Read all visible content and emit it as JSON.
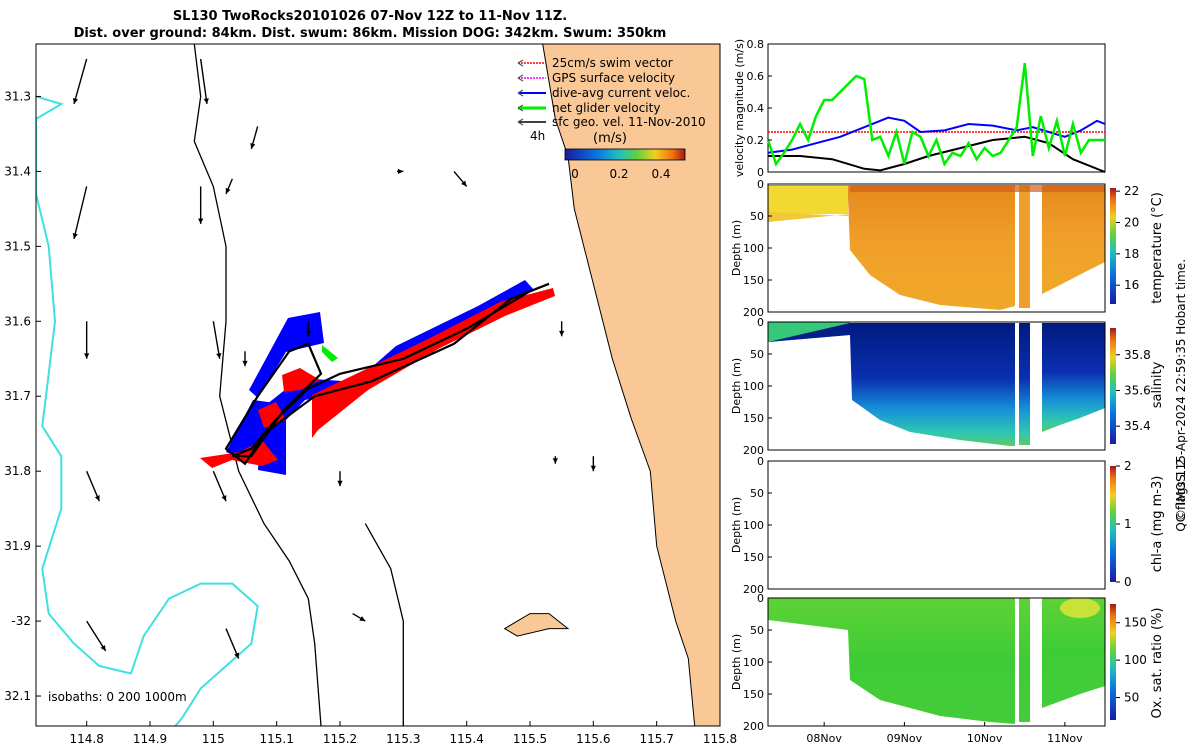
{
  "title_line1": "SL130 TwoRocks20101026 07-Nov 12Z to 11-Nov 11Z.",
  "title_line2": "Dist. over ground: 84km. Dist. swum: 86km. Mission DOG: 342km. Swum: 350km",
  "colors": {
    "land": "#f9c896",
    "isobath_0": "#000000",
    "isobath_200": "#000000",
    "isobath_1000": "#3fe0e0",
    "swim": "#ff0000",
    "gps": "#ff00ff",
    "current": "#0000ff",
    "net": "#00ee00",
    "geo": "#000000"
  },
  "chart_data": [
    {
      "type": "map",
      "title": "Glider track and velocity vectors",
      "xlim": [
        114.72,
        115.8
      ],
      "ylim": [
        -32.14,
        -31.23
      ],
      "xticks": [
        114.8,
        114.9,
        115,
        115.1,
        115.2,
        115.3,
        115.4,
        115.5,
        115.6,
        115.7,
        115.8
      ],
      "xtick_labels": [
        "114.8",
        "114.9",
        "115",
        "115.1",
        "115.2",
        "115.3",
        "115.4",
        "115.5",
        "115.6",
        "115.7",
        "115.8"
      ],
      "yticks": [
        -31.3,
        -31.4,
        -31.5,
        -31.6,
        -31.7,
        -31.8,
        -31.9,
        -32.0,
        -32.1
      ],
      "ytick_labels": [
        "31.3",
        "31.4",
        "31.5",
        "31.6",
        "31.7",
        "31.8",
        "31.9",
        "-32",
        "32.1"
      ],
      "legend": {
        "placement": "top-right",
        "entries": [
          "25cm/s swim vector",
          "GPS surface velocity",
          "dive-avg current veloc.",
          "net glider velocity",
          "sfc geo. vel. 11-Nov-2010"
        ],
        "time_label": "4h",
        "colorbar_unit": "(m/s)",
        "colorbar_ticks": [
          "0",
          "0.2",
          "0.4"
        ],
        "colorbar_range": [
          0,
          0.5
        ]
      },
      "isobaths_label": "isobaths: 0   200  1000m",
      "track": [
        [
          115.03,
          -31.78
        ],
        [
          115.06,
          -31.77
        ],
        [
          115.1,
          -31.73
        ],
        [
          115.15,
          -31.69
        ],
        [
          115.2,
          -31.67
        ],
        [
          115.3,
          -31.65
        ],
        [
          115.4,
          -31.61
        ],
        [
          115.5,
          -31.56
        ],
        [
          115.53,
          -31.55
        ],
        [
          115.47,
          -31.57
        ],
        [
          115.38,
          -31.63
        ],
        [
          115.25,
          -31.68
        ],
        [
          115.16,
          -31.7
        ],
        [
          115.08,
          -31.75
        ],
        [
          115.05,
          -31.79
        ],
        [
          115.02,
          -31.77
        ],
        [
          115.07,
          -31.7
        ],
        [
          115.12,
          -31.64
        ],
        [
          115.15,
          -31.63
        ],
        [
          115.17,
          -31.67
        ],
        [
          115.11,
          -31.72
        ],
        [
          115.06,
          -31.78
        ],
        [
          115.03,
          -31.78
        ]
      ],
      "coast": [
        [
          115.52,
          -31.23
        ],
        [
          115.54,
          -31.33
        ],
        [
          115.56,
          -31.38
        ],
        [
          115.57,
          -31.45
        ],
        [
          115.6,
          -31.55
        ],
        [
          115.63,
          -31.65
        ],
        [
          115.66,
          -31.73
        ],
        [
          115.69,
          -31.8
        ],
        [
          115.7,
          -31.9
        ],
        [
          115.73,
          -32.0
        ],
        [
          115.75,
          -32.05
        ],
        [
          115.76,
          -32.14
        ]
      ],
      "island": [
        [
          115.46,
          -32.01
        ],
        [
          115.5,
          -31.99
        ],
        [
          115.53,
          -31.99
        ],
        [
          115.56,
          -32.01
        ],
        [
          115.53,
          -32.01
        ],
        [
          115.48,
          -32.02
        ],
        [
          115.46,
          -32.01
        ]
      ],
      "isobath_200_line": [
        [
          114.97,
          -31.23
        ],
        [
          114.98,
          -31.3
        ],
        [
          114.97,
          -31.36
        ],
        [
          115.0,
          -31.42
        ],
        [
          115.02,
          -31.5
        ],
        [
          115.02,
          -31.6
        ],
        [
          115.01,
          -31.7
        ],
        [
          115.04,
          -31.8
        ],
        [
          115.08,
          -31.87
        ],
        [
          115.12,
          -31.92
        ],
        [
          115.15,
          -31.97
        ],
        [
          115.16,
          -32.03
        ],
        [
          115.17,
          -32.14
        ]
      ],
      "isobath_0_line": [
        [
          115.24,
          -31.87
        ],
        [
          115.28,
          -31.93
        ],
        [
          115.3,
          -32.0
        ],
        [
          115.3,
          -32.05
        ],
        [
          115.3,
          -32.14
        ]
      ],
      "isobath_1000_line": [
        [
          114.72,
          -31.3
        ],
        [
          114.76,
          -31.31
        ],
        [
          114.72,
          -31.33
        ],
        [
          114.72,
          -31.43
        ],
        [
          114.74,
          -31.5
        ],
        [
          114.75,
          -31.6
        ],
        [
          114.74,
          -31.67
        ],
        [
          114.73,
          -31.74
        ],
        [
          114.76,
          -31.78
        ],
        [
          114.76,
          -31.85
        ],
        [
          114.73,
          -31.93
        ],
        [
          114.74,
          -31.99
        ],
        [
          114.78,
          -32.03
        ],
        [
          114.82,
          -32.06
        ],
        [
          114.87,
          -32.07
        ],
        [
          114.89,
          -32.02
        ],
        [
          114.93,
          -31.97
        ],
        [
          114.98,
          -31.95
        ],
        [
          115.03,
          -31.95
        ],
        [
          115.07,
          -31.98
        ],
        [
          115.06,
          -32.03
        ],
        [
          115.02,
          -32.06
        ],
        [
          114.98,
          -32.09
        ],
        [
          114.95,
          -32.13
        ],
        [
          114.94,
          -32.14
        ]
      ],
      "geo_vectors": [
        [
          114.8,
          -31.25,
          -0.02,
          -0.06
        ],
        [
          114.8,
          -31.42,
          -0.02,
          -0.07
        ],
        [
          114.8,
          -31.6,
          0.0,
          -0.05
        ],
        [
          114.8,
          -31.8,
          0.02,
          -0.04
        ],
        [
          114.8,
          -32.0,
          0.03,
          -0.04
        ],
        [
          114.98,
          -31.25,
          0.01,
          -0.06
        ],
        [
          114.98,
          -31.42,
          0.0,
          -0.05
        ],
        [
          115.0,
          -31.6,
          0.01,
          -0.05
        ],
        [
          115.0,
          -31.8,
          0.02,
          -0.04
        ],
        [
          115.02,
          -32.01,
          0.02,
          -0.04
        ],
        [
          115.07,
          -31.34,
          -0.01,
          -0.03
        ],
        [
          115.03,
          -31.41,
          -0.01,
          -0.02
        ],
        [
          115.05,
          -31.64,
          0.0,
          -0.02
        ],
        [
          115.15,
          -31.6,
          0.0,
          -0.02
        ],
        [
          115.2,
          -31.8,
          0.0,
          -0.02
        ],
        [
          115.22,
          -31.99,
          0.02,
          -0.01
        ],
        [
          115.29,
          -31.4,
          0.01,
          0.0
        ],
        [
          115.38,
          -31.4,
          0.02,
          -0.02
        ],
        [
          115.55,
          -31.6,
          0.0,
          -0.02
        ],
        [
          115.6,
          -31.78,
          0.0,
          -0.02
        ],
        [
          115.54,
          -31.78,
          0.0,
          -0.01
        ]
      ],
      "track_cities": []
    },
    {
      "type": "line",
      "xlabel": "",
      "ylabel": "velocity magnitude (m/s)",
      "xlim": [
        7.3,
        11.5
      ],
      "ylim": [
        0,
        0.8
      ],
      "yticks": [
        0,
        0.2,
        0.4,
        0.6,
        0.8
      ],
      "ytick_labels": [
        "0",
        "0.2",
        "0.4",
        "0.6",
        "0.8"
      ],
      "series": [
        {
          "name": "25cm/s swim vector",
          "color": "#ff0000",
          "x": [
            7.3,
            11.5
          ],
          "values": [
            0.25,
            0.25
          ]
        },
        {
          "name": "dive-avg current veloc.",
          "color": "#0000ff",
          "x": [
            7.3,
            7.6,
            7.9,
            8.2,
            8.5,
            8.8,
            9.0,
            9.2,
            9.5,
            9.8,
            10.1,
            10.4,
            10.6,
            10.8,
            11.0,
            11.2,
            11.4,
            11.5
          ],
          "values": [
            0.12,
            0.14,
            0.18,
            0.22,
            0.28,
            0.34,
            0.32,
            0.25,
            0.26,
            0.3,
            0.29,
            0.26,
            0.28,
            0.25,
            0.22,
            0.26,
            0.32,
            0.3
          ]
        },
        {
          "name": "sfc geo. vel.",
          "color": "#000000",
          "x": [
            7.3,
            7.7,
            8.1,
            8.5,
            8.7,
            9.0,
            9.3,
            9.7,
            10.1,
            10.5,
            10.8,
            11.1,
            11.5
          ],
          "values": [
            0.1,
            0.1,
            0.08,
            0.02,
            0.01,
            0.05,
            0.1,
            0.15,
            0.2,
            0.22,
            0.18,
            0.08,
            0.0
          ]
        },
        {
          "name": "net glider velocity",
          "color": "#00ee00",
          "x": [
            7.3,
            7.4,
            7.5,
            7.6,
            7.7,
            7.8,
            7.9,
            8.0,
            8.1,
            8.2,
            8.3,
            8.4,
            8.5,
            8.6,
            8.7,
            8.8,
            8.9,
            9.0,
            9.1,
            9.2,
            9.3,
            9.4,
            9.5,
            9.6,
            9.7,
            9.8,
            9.9,
            10.0,
            10.1,
            10.2,
            10.3,
            10.4,
            10.5,
            10.6,
            10.7,
            10.8,
            10.9,
            11.0,
            11.1,
            11.2,
            11.3,
            11.4,
            11.5
          ],
          "values": [
            0.2,
            0.05,
            0.12,
            0.2,
            0.3,
            0.2,
            0.35,
            0.45,
            0.45,
            0.5,
            0.55,
            0.6,
            0.58,
            0.2,
            0.22,
            0.1,
            0.25,
            0.05,
            0.25,
            0.22,
            0.1,
            0.2,
            0.05,
            0.12,
            0.1,
            0.18,
            0.08,
            0.15,
            0.1,
            0.12,
            0.2,
            0.28,
            0.68,
            0.1,
            0.35,
            0.15,
            0.32,
            0.1,
            0.3,
            0.12,
            0.2,
            0.2,
            0.2
          ]
        }
      ]
    },
    {
      "type": "heatmap",
      "ylabel": "Depth (m)",
      "ylim": [
        0,
        200
      ],
      "yticks": [
        0,
        50,
        100,
        150,
        200
      ],
      "colorbar_label": "temperature (°C)",
      "colorbar_ticks": [
        "16",
        "18",
        "20",
        "22"
      ],
      "colorbar_range": [
        14.8,
        22.2
      ],
      "palette": [
        "#f2e84a",
        "#f0a020",
        "#e07a10"
      ],
      "shallow_value": "#f7e04a",
      "deep_value": "#e08a18"
    },
    {
      "type": "heatmap",
      "ylabel": "Depth (m)",
      "ylim": [
        0,
        200
      ],
      "yticks": [
        0,
        50,
        100,
        150,
        200
      ],
      "colorbar_label": "salinity",
      "colorbar_ticks": [
        "35.4",
        "35.6",
        "35.8"
      ],
      "colorbar_range": [
        35.3,
        35.95
      ],
      "palette": [
        "#4ec060",
        "#1fc0d0",
        "#0a3fc0",
        "#001a8a"
      ]
    },
    {
      "type": "heatmap",
      "ylabel": "Depth (m)",
      "ylim": [
        0,
        200
      ],
      "yticks": [
        0,
        50,
        100,
        150,
        200
      ],
      "colorbar_label": "chl-a (mg m-3)",
      "colorbar_ticks": [
        "0",
        "1",
        "2"
      ],
      "colorbar_range": [
        0,
        2
      ],
      "palette": []
    },
    {
      "type": "heatmap",
      "ylabel": "Depth (m)",
      "ylim": [
        0,
        200
      ],
      "yticks": [
        0,
        50,
        100,
        150,
        200
      ],
      "colorbar_label": "Ox. sat. ratio (%)",
      "colorbar_ticks": [
        "50",
        "100",
        "150"
      ],
      "colorbar_range": [
        20,
        175
      ],
      "palette": [
        "#36d03a",
        "#6fd030",
        "#c8e23a"
      ],
      "xtick_labels": [
        "08Nov",
        "09Nov",
        "10Nov",
        "11Nov"
      ],
      "xticks": [
        8,
        9,
        10,
        11
      ]
    }
  ],
  "side_flags": "QC flags 1  2",
  "side_credit": "© IMOS 15-Apr-2024 22:59:35 Hobart time."
}
